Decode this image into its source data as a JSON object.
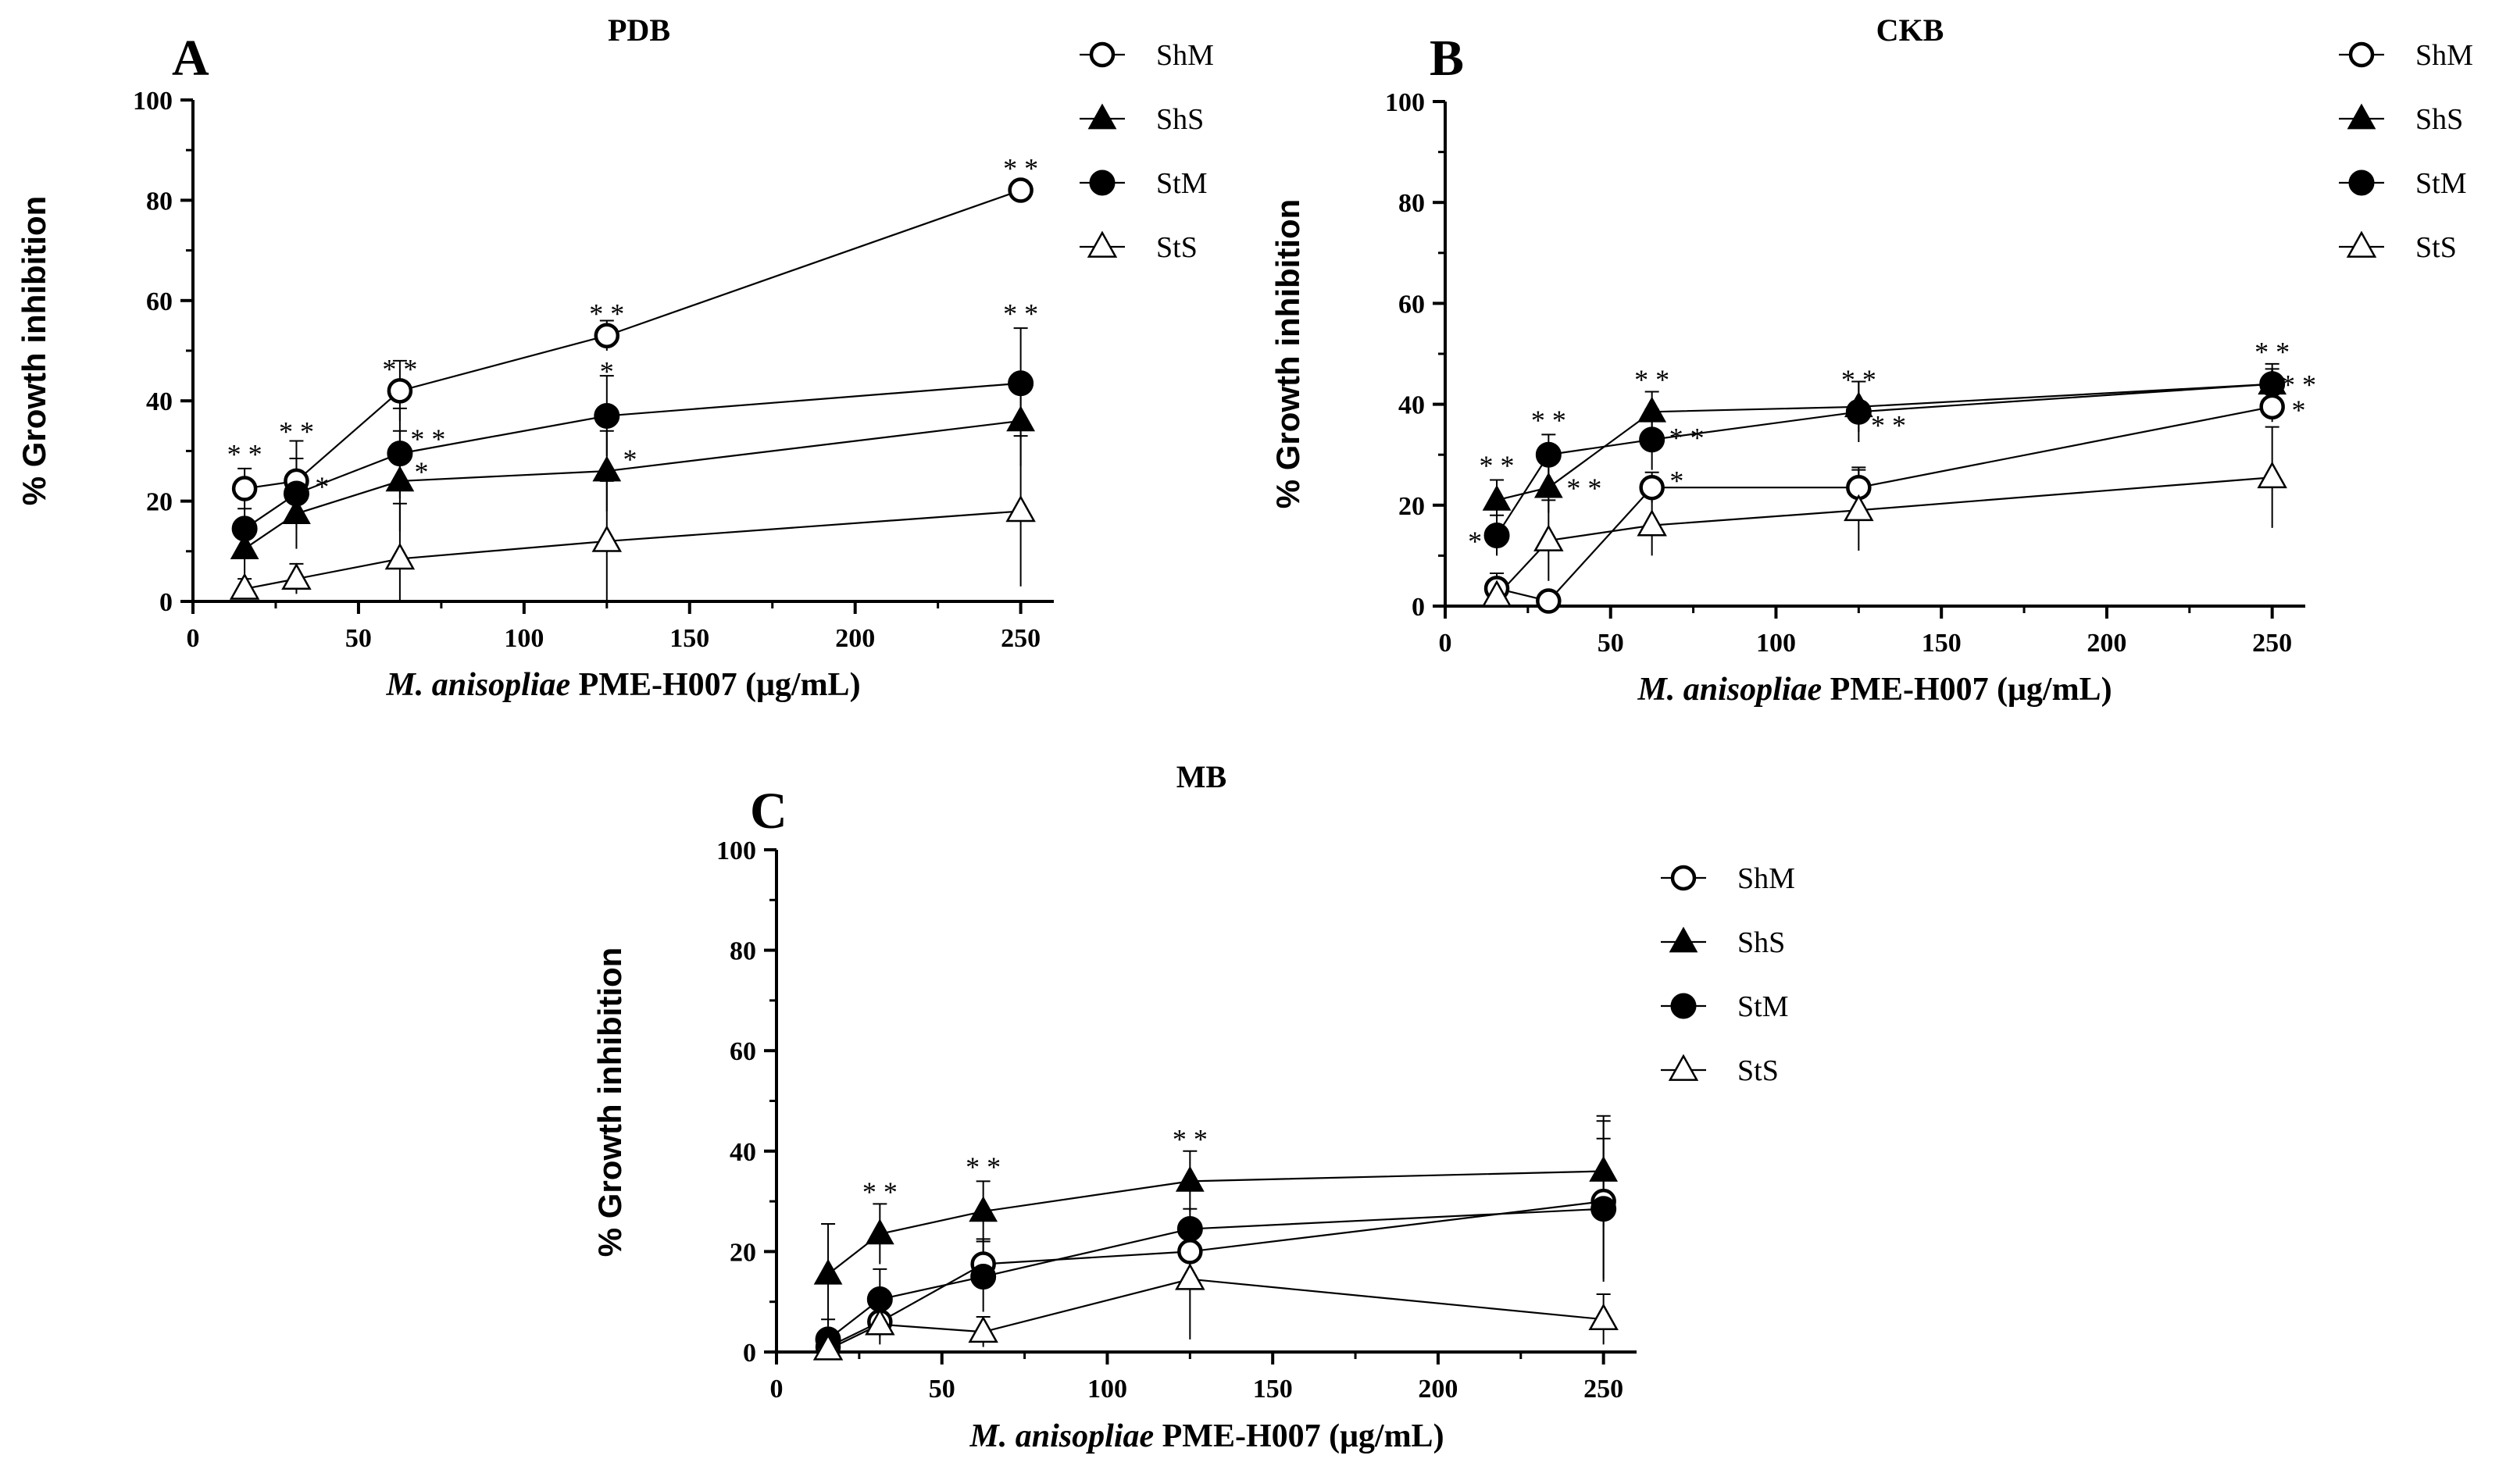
{
  "chart_data": [
    {
      "panel": "A",
      "type": "line",
      "title": "PDB",
      "xlabel_italic": "M. anisopliae",
      "xlabel_rest": " PME-H007 (μg/mL)",
      "ylabel": "% Growth inhibition",
      "xlim": [
        0,
        260
      ],
      "ylim": [
        0,
        100
      ],
      "xticks": [
        0,
        50,
        100,
        150,
        200,
        250
      ],
      "yticks": [
        0,
        20,
        40,
        60,
        80,
        100
      ],
      "x": [
        15.6,
        31.25,
        62.5,
        125,
        250
      ],
      "series": [
        {
          "name": "ShM",
          "marker": "open-circle",
          "values": [
            22.5,
            24,
            42,
            53,
            82
          ],
          "errors": [
            4,
            8,
            6,
            3,
            1
          ]
        },
        {
          "name": "ShS",
          "marker": "filled-triangle",
          "values": [
            10.5,
            17.5,
            24,
            26,
            36
          ],
          "errors": [
            5,
            7,
            10,
            8,
            9
          ]
        },
        {
          "name": "StM",
          "marker": "filled-circle",
          "values": [
            14.5,
            21.5,
            29.5,
            37,
            43.5
          ],
          "errors": [
            4,
            7,
            9,
            8,
            11
          ]
        },
        {
          "name": "StS",
          "marker": "open-triangle",
          "values": [
            2.5,
            4.5,
            8.5,
            12,
            18
          ],
          "errors": [
            2,
            3,
            11,
            12,
            15
          ]
        }
      ],
      "annotations": [
        {
          "x": 15.6,
          "y": 27.5,
          "text": "* *"
        },
        {
          "x": 31.25,
          "y": 32,
          "text": "* *"
        },
        {
          "x": 39,
          "y": 21,
          "text": "*"
        },
        {
          "x": 62.5,
          "y": 44.5,
          "text": "* *"
        },
        {
          "x": 71,
          "y": 30.5,
          "text": "* *"
        },
        {
          "x": 69,
          "y": 24,
          "text": "*"
        },
        {
          "x": 125,
          "y": 55.5,
          "text": "* *"
        },
        {
          "x": 125,
          "y": 44,
          "text": "*"
        },
        {
          "x": 132,
          "y": 26.5,
          "text": "*"
        },
        {
          "x": 250,
          "y": 84.5,
          "text": "* *"
        },
        {
          "x": 250,
          "y": 55.5,
          "text": "* *"
        }
      ]
    },
    {
      "panel": "B",
      "type": "line",
      "title": "CKB",
      "xlabel_italic": "M. anisopliae",
      "xlabel_rest": " PME-H007 (μg/mL)",
      "ylabel": "%  Growth inhibition",
      "xlim": [
        0,
        260
      ],
      "ylim": [
        0,
        100
      ],
      "xticks": [
        0,
        50,
        100,
        150,
        200,
        250
      ],
      "yticks": [
        0,
        20,
        40,
        60,
        80,
        100
      ],
      "x": [
        15.6,
        31.25,
        62.5,
        125,
        250
      ],
      "series": [
        {
          "name": "ShM",
          "marker": "open-circle",
          "values": [
            3.5,
            1,
            23.5,
            23.5,
            39.5
          ],
          "errors": [
            3,
            1,
            3,
            4,
            3
          ]
        },
        {
          "name": "ShS",
          "marker": "filled-triangle",
          "values": [
            21,
            23.5,
            38.5,
            39.5,
            44
          ],
          "errors": [
            4,
            5,
            4,
            5,
            3
          ]
        },
        {
          "name": "StM",
          "marker": "filled-circle",
          "values": [
            14,
            30,
            33,
            38.5,
            44
          ],
          "errors": [
            4,
            4,
            6,
            6,
            4
          ]
        },
        {
          "name": "StS",
          "marker": "open-triangle",
          "values": [
            2,
            13,
            16,
            19,
            25.5
          ],
          "errors": [
            2,
            8,
            6,
            8,
            10
          ]
        }
      ],
      "annotations": [
        {
          "x": 15.6,
          "y": 26,
          "text": "* *"
        },
        {
          "x": 31.25,
          "y": 35,
          "text": "* *"
        },
        {
          "x": 42,
          "y": 21.5,
          "text": "* *"
        },
        {
          "x": 62.5,
          "y": 43,
          "text": "* *"
        },
        {
          "x": 73,
          "y": 31.5,
          "text": "* *"
        },
        {
          "x": 70,
          "y": 23,
          "text": "*"
        },
        {
          "x": 125,
          "y": 43,
          "text": "* *"
        },
        {
          "x": 134,
          "y": 34,
          "text": "* *"
        },
        {
          "x": 9,
          "y": 11,
          "text": "*"
        },
        {
          "x": 250,
          "y": 48.5,
          "text": "* *"
        },
        {
          "x": 258,
          "y": 42,
          "text": "* *"
        },
        {
          "x": 258,
          "y": 37,
          "text": "*"
        }
      ]
    },
    {
      "panel": "C",
      "type": "line",
      "title": "MB",
      "xlabel_italic": "M. anisopliae",
      "xlabel_rest": " PME-H007 (μg/mL)",
      "ylabel": "%  Growth inhibition",
      "xlim": [
        0,
        260
      ],
      "ylim": [
        0,
        100
      ],
      "xticks": [
        0,
        50,
        100,
        150,
        200,
        250
      ],
      "yticks": [
        0,
        20,
        40,
        60,
        80,
        100
      ],
      "x": [
        15.6,
        31.25,
        62.5,
        125,
        250
      ],
      "series": [
        {
          "name": "ShM",
          "marker": "open-circle",
          "values": [
            1,
            6,
            17.5,
            20,
            30
          ],
          "errors": [
            2,
            3,
            5,
            6,
            16
          ]
        },
        {
          "name": "ShS",
          "marker": "filled-triangle",
          "values": [
            15.5,
            23.5,
            28,
            34,
            36
          ],
          "errors": [
            10,
            6,
            6,
            6,
            11
          ]
        },
        {
          "name": "StM",
          "marker": "filled-circle",
          "values": [
            2.5,
            10.5,
            15,
            24.5,
            28.5
          ],
          "errors": [
            4,
            6,
            7,
            4,
            14
          ]
        },
        {
          "name": "StS",
          "marker": "open-triangle",
          "values": [
            0.5,
            5.5,
            4,
            14.5,
            6.5
          ],
          "errors": [
            1,
            4,
            3,
            12,
            5
          ]
        }
      ],
      "annotations": [
        {
          "x": 31.25,
          "y": 30,
          "text": "* *"
        },
        {
          "x": 62.5,
          "y": 35,
          "text": "* *"
        },
        {
          "x": 125,
          "y": 40.5,
          "text": "* *"
        }
      ]
    }
  ]
}
